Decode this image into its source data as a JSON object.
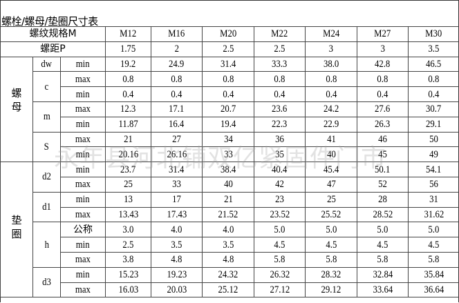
{
  "title": "螺栓/螺母/垫圈尺寸表",
  "header": {
    "label": "螺纹规格M",
    "sizes": [
      "M12",
      "M16",
      "M20",
      "M22",
      "M24",
      "M27",
      "M30"
    ]
  },
  "pitch": {
    "label": "螺距P",
    "values": [
      "1.75",
      "2",
      "2.5",
      "2.5",
      "3",
      "3",
      "3.5"
    ]
  },
  "groups": [
    {
      "label": "螺\n母",
      "params": [
        {
          "name": "dw",
          "rows": [
            {
              "sub": "min",
              "values": [
                "19.2",
                "24.9",
                "31.4",
                "33.3",
                "38.0",
                "42.8",
                "46.5"
              ]
            }
          ]
        },
        {
          "name": "c",
          "rows": [
            {
              "sub": "max",
              "values": [
                "0.8",
                "0.8",
                "0.8",
                "0.8",
                "0.8",
                "0.8",
                "0.8"
              ]
            },
            {
              "sub": "min",
              "values": [
                "0.4",
                "0.4",
                "0.4",
                "0.4",
                "0.4",
                "0.4",
                "0.4"
              ]
            }
          ]
        },
        {
          "name": "m",
          "rows": [
            {
              "sub": "max",
              "values": [
                "12.3",
                "17.1",
                "20.7",
                "23.6",
                "24.2",
                "27.6",
                "30.7"
              ]
            },
            {
              "sub": "min",
              "values": [
                "11.87",
                "16.4",
                "19.4",
                "22.3",
                "22.9",
                "26.3",
                "29.1"
              ]
            }
          ]
        },
        {
          "name": "S",
          "rows": [
            {
              "sub": "max",
              "values": [
                "21",
                "27",
                "34",
                "36",
                "41",
                "46",
                "50"
              ]
            },
            {
              "sub": "min",
              "values": [
                "20.16",
                "26.16",
                "33",
                "35",
                "40",
                "45",
                "49"
              ]
            }
          ]
        }
      ]
    },
    {
      "label": "垫\n圈",
      "params": [
        {
          "name": "d2",
          "rows": [
            {
              "sub": "min",
              "values": [
                "23.7",
                "31.4",
                "38.4",
                "40.4",
                "45.4",
                "50.1",
                "54.1"
              ]
            },
            {
              "sub": "max",
              "values": [
                "25",
                "33",
                "40",
                "42",
                "47",
                "52",
                "56"
              ]
            }
          ]
        },
        {
          "name": "d1",
          "rows": [
            {
              "sub": "min",
              "values": [
                "13",
                "17",
                "21",
                "23",
                "25",
                "28",
                "31"
              ]
            },
            {
              "sub": "max",
              "values": [
                "13.43",
                "17.43",
                "21.52",
                "23.52",
                "25.52",
                "28.52",
                "31.62"
              ]
            }
          ]
        },
        {
          "name": "h",
          "rows": [
            {
              "sub": "公称",
              "values": [
                "3.0",
                "4.0",
                "4.0",
                "5.0",
                "5.0",
                "5.0",
                "5.0"
              ]
            },
            {
              "sub": "min",
              "values": [
                "2.5",
                "3.5",
                "3.5",
                "4.5",
                "4.5",
                "4.5",
                "4.5"
              ]
            },
            {
              "sub": "max",
              "values": [
                "3.8",
                "4.8",
                "4.8",
                "5.8",
                "5.8",
                "5.8",
                "5.8"
              ]
            }
          ]
        },
        {
          "name": "d3",
          "rows": [
            {
              "sub": "min",
              "values": [
                "15.23",
                "19.23",
                "24.32",
                "26.32",
                "28.32",
                "32.84",
                "35.84"
              ]
            },
            {
              "sub": "max",
              "values": [
                "16.03",
                "20.03",
                "25.12",
                "27.12",
                "29.12",
                "33.64",
                "36.64"
              ]
            }
          ]
        }
      ]
    }
  ],
  "watermark": "永年县河北铺双亿紧固件门市"
}
